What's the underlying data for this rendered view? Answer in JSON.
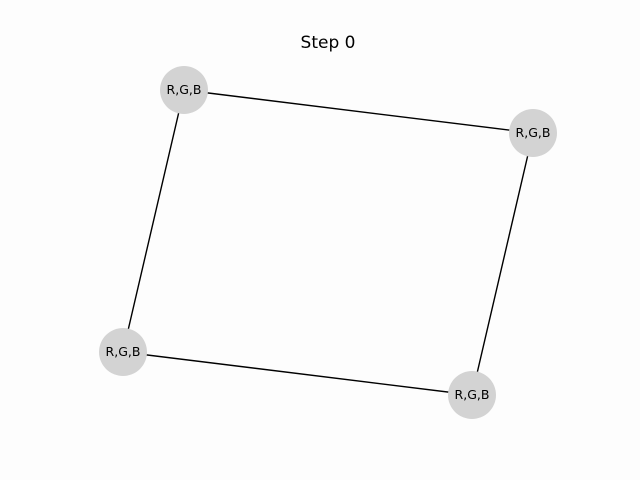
{
  "title": "Step 0",
  "colors": {
    "node_fill": "#d3d3d3",
    "edge": "#000000",
    "background": "#fdfdfd"
  },
  "nodes": [
    {
      "id": "n1",
      "label": "R,G,B"
    },
    {
      "id": "n2",
      "label": "R,G,B"
    },
    {
      "id": "n3",
      "label": "R,G,B"
    },
    {
      "id": "n4",
      "label": "R,G,B"
    }
  ],
  "edges": [
    {
      "source": "n1",
      "target": "n2"
    },
    {
      "source": "n2",
      "target": "n3"
    },
    {
      "source": "n3",
      "target": "n4"
    },
    {
      "source": "n4",
      "target": "n1"
    }
  ]
}
